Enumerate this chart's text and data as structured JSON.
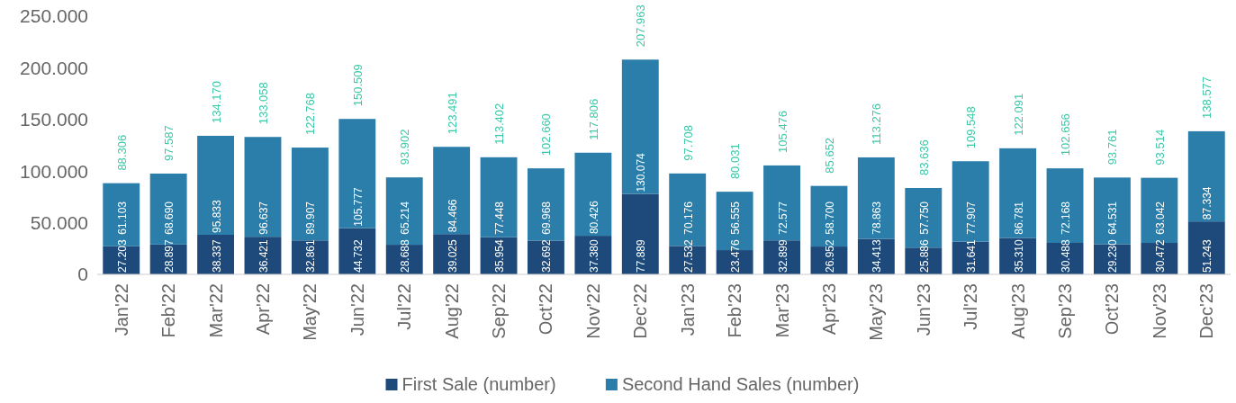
{
  "chart_data": {
    "type": "bar",
    "stacked": true,
    "categories": [
      "Jan'22",
      "Feb'22",
      "Mar'22",
      "Apr'22",
      "May'22",
      "Jun'22",
      "Jul'22",
      "Aug'22",
      "Sep'22",
      "Oct'22",
      "Nov'22",
      "Dec'22",
      "Jan'23",
      "Feb'23",
      "Mar'23",
      "Apr'23",
      "May'23",
      "Jun'23",
      "Jul'23",
      "Aug'23",
      "Sep'23",
      "Oct'23",
      "Nov'23",
      "Dec'23"
    ],
    "series": [
      {
        "name": "First Sale (number)",
        "color": "#1d4a7a",
        "values": [
          27203,
          28897,
          38337,
          36421,
          32861,
          44732,
          28688,
          39025,
          35954,
          32692,
          37380,
          77889,
          27532,
          23476,
          32899,
          26952,
          34413,
          25886,
          31641,
          35310,
          30488,
          29230,
          30472,
          51243
        ],
        "value_labels": [
          "27.203",
          "28.897",
          "38.337",
          "36.421",
          "32.861",
          "44.732",
          "28.688",
          "39.025",
          "35.954",
          "32.692",
          "37.380",
          "77.889",
          "27.532",
          "23.476",
          "32.899",
          "26.952",
          "34.413",
          "25.886",
          "31.641",
          "35.310",
          "30.488",
          "29.230",
          "30.472",
          "51.243"
        ]
      },
      {
        "name": "Second Hand Sales (number)",
        "color": "#2b7eaa",
        "values": [
          61103,
          68690,
          95833,
          96637,
          89907,
          105777,
          65214,
          84466,
          77448,
          69968,
          80426,
          130074,
          70176,
          56555,
          72577,
          58700,
          78863,
          57750,
          77907,
          86781,
          72168,
          64531,
          63042,
          87334
        ],
        "value_labels": [
          "61.103",
          "68.690",
          "95.833",
          "96.637",
          "89.907",
          "105.777",
          "65.214",
          "84.466",
          "77.448",
          "69.968",
          "80.426",
          "130.074",
          "70.176",
          "56.555",
          "72.577",
          "58.700",
          "78.863",
          "57.750",
          "77.907",
          "86.781",
          "72.168",
          "64.531",
          "63.042",
          "87.334"
        ]
      }
    ],
    "totals": [
      "88.306",
      "97.587",
      "134.170",
      "133.058",
      "122.768",
      "150.509",
      "93.902",
      "123.491",
      "113.402",
      "102.660",
      "117.806",
      "207.963",
      "97.708",
      "80.031",
      "105.476",
      "85.652",
      "113.276",
      "83.636",
      "109.548",
      "122.091",
      "102.656",
      "93.761",
      "93.514",
      "138.577"
    ],
    "ylim": [
      0,
      250000
    ],
    "yticks": [
      0,
      {
        "value": 50000,
        "label": "50.000"
      },
      {
        "value": 100000,
        "label": "100.000"
      },
      {
        "value": 150000,
        "label": "150.000"
      },
      {
        "value": 200000,
        "label": "200.000"
      },
      {
        "value": 250000,
        "label": "250.000"
      }
    ],
    "grid": false,
    "legend": "bottom"
  }
}
